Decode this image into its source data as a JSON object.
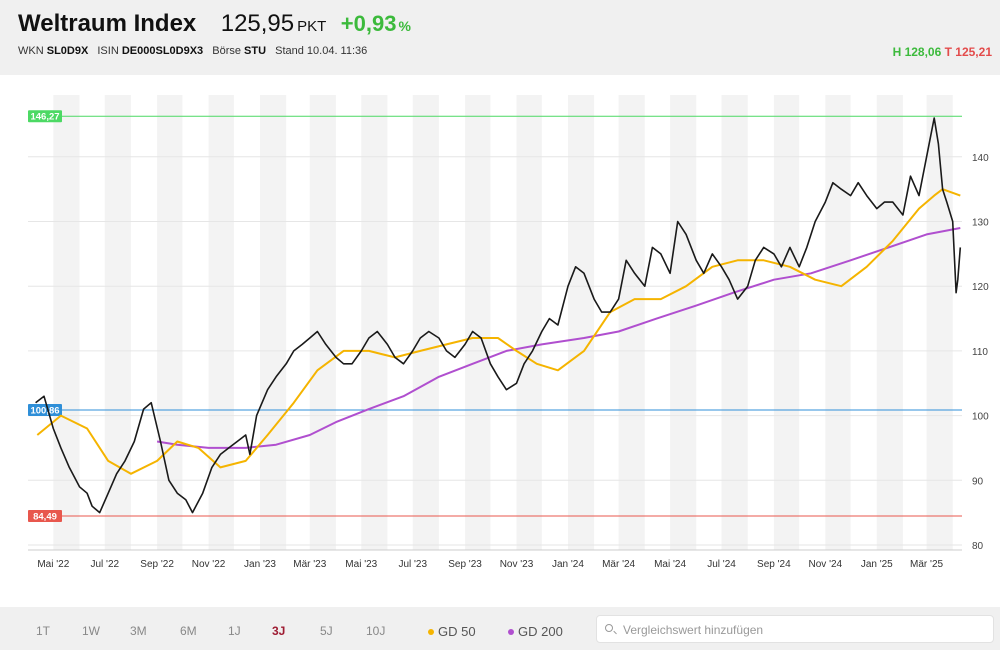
{
  "header": {
    "name": "Weltraum Index",
    "price": "125,95",
    "unit": "PKT",
    "change": "+0,93",
    "change_unit": "%",
    "wkn_label": "WKN",
    "wkn": "SL0D9X",
    "isin_label": "ISIN",
    "isin": "DE000SL0D9X3",
    "exchange_label": "Börse",
    "exchange": "STU",
    "stand_label": "Stand",
    "stand": "10.04. 11:36",
    "high": "H 128,06",
    "low": "T 125,21"
  },
  "colors": {
    "price_line": "#1a1a1a",
    "gd50": "#f5b400",
    "gd200": "#b04fcf",
    "max_line": "#4cd964",
    "ref_line": "#2f8fd8",
    "min_line": "#e8574d",
    "band": "#f3f3f3",
    "up": "#3cba3c",
    "down": "#e34b4b"
  },
  "chart_data": {
    "type": "line",
    "y_ticks": [
      80,
      90,
      100,
      110,
      120,
      130,
      140
    ],
    "ylim": [
      78,
      148
    ],
    "x_months": [
      "Mai '22",
      "Jul '22",
      "Sep '22",
      "Nov '22",
      "Jan '23",
      "Mär '23",
      "Mai '23",
      "Jul '23",
      "Sep '23",
      "Nov '23",
      "Jan '24",
      "Mär '24",
      "Mai '24",
      "Jul '24",
      "Sep '24",
      "Nov '24",
      "Jan '25",
      "Mär '25"
    ],
    "levels": [
      {
        "label": "146,27",
        "value": 146.27,
        "kind": "max"
      },
      {
        "label": "100,86",
        "value": 100.86,
        "kind": "ref"
      },
      {
        "label": "84,49",
        "value": 84.49,
        "kind": "min"
      }
    ],
    "series": [
      {
        "name": "",
        "key": "price",
        "x": [
          "2022-04-10",
          "2022-04-20",
          "2022-05-01",
          "2022-05-10",
          "2022-05-20",
          "2022-06-01",
          "2022-06-10",
          "2022-06-16",
          "2022-06-25",
          "2022-07-05",
          "2022-07-15",
          "2022-07-25",
          "2022-08-05",
          "2022-08-16",
          "2022-08-25",
          "2022-09-05",
          "2022-09-15",
          "2022-09-25",
          "2022-10-05",
          "2022-10-13",
          "2022-10-25",
          "2022-11-05",
          "2022-11-15",
          "2022-11-25",
          "2022-12-05",
          "2022-12-15",
          "2022-12-20",
          "2022-12-28",
          "2023-01-10",
          "2023-01-20",
          "2023-02-01",
          "2023-02-10",
          "2023-02-20",
          "2023-03-01",
          "2023-03-10",
          "2023-03-20",
          "2023-04-01",
          "2023-04-10",
          "2023-04-20",
          "2023-05-01",
          "2023-05-10",
          "2023-05-20",
          "2023-06-01",
          "2023-06-10",
          "2023-06-20",
          "2023-07-01",
          "2023-07-10",
          "2023-07-20",
          "2023-08-01",
          "2023-08-10",
          "2023-08-20",
          "2023-09-01",
          "2023-09-10",
          "2023-09-20",
          "2023-10-01",
          "2023-10-10",
          "2023-10-20",
          "2023-11-01",
          "2023-11-10",
          "2023-11-20",
          "2023-12-01",
          "2023-12-10",
          "2023-12-20",
          "2024-01-01",
          "2024-01-10",
          "2024-01-20",
          "2024-02-01",
          "2024-02-10",
          "2024-02-20",
          "2024-03-01",
          "2024-03-10",
          "2024-03-20",
          "2024-04-01",
          "2024-04-10",
          "2024-04-20",
          "2024-05-01",
          "2024-05-10",
          "2024-05-20",
          "2024-06-01",
          "2024-06-10",
          "2024-06-20",
          "2024-07-01",
          "2024-07-10",
          "2024-07-20",
          "2024-08-01",
          "2024-08-10",
          "2024-08-20",
          "2024-09-01",
          "2024-09-10",
          "2024-09-20",
          "2024-10-01",
          "2024-10-10",
          "2024-10-20",
          "2024-11-01",
          "2024-11-10",
          "2024-11-20",
          "2024-12-01",
          "2024-12-10",
          "2024-12-20",
          "2025-01-01",
          "2025-01-10",
          "2025-01-20",
          "2025-02-01",
          "2025-02-10",
          "2025-02-20",
          "2025-03-01",
          "2025-03-10",
          "2025-03-15",
          "2025-03-20",
          "2025-03-25",
          "2025-04-01",
          "2025-04-05",
          "2025-04-07",
          "2025-04-10"
        ],
        "y": [
          102,
          103,
          98,
          95,
          92,
          89,
          88,
          86,
          85,
          88,
          91,
          93,
          96,
          101,
          102,
          96,
          90,
          88,
          87,
          85,
          88,
          92,
          94,
          95,
          96,
          97,
          94,
          100,
          104,
          106,
          108,
          110,
          111,
          112,
          113,
          111,
          109,
          108,
          108,
          110,
          112,
          113,
          111,
          109,
          108,
          110,
          112,
          113,
          112,
          110,
          109,
          111,
          113,
          112,
          108,
          106,
          104,
          105,
          108,
          110,
          113,
          115,
          114,
          120,
          123,
          122,
          118,
          116,
          116,
          118,
          124,
          122,
          120,
          126,
          125,
          122,
          130,
          128,
          124,
          122,
          125,
          123,
          121,
          118,
          120,
          124,
          126,
          125,
          123,
          126,
          123,
          126,
          130,
          133,
          136,
          135,
          134,
          136,
          134,
          132,
          133,
          133,
          131,
          137,
          134,
          140,
          146,
          142,
          135,
          133,
          130,
          119,
          121,
          126
        ]
      },
      {
        "name": "GD 50",
        "key": "gd50",
        "x": [
          "2022-04-12",
          "2022-05-10",
          "2022-06-10",
          "2022-07-05",
          "2022-08-01",
          "2022-09-01",
          "2022-09-25",
          "2022-10-20",
          "2022-11-15",
          "2022-12-15",
          "2023-01-10",
          "2023-02-10",
          "2023-03-10",
          "2023-04-10",
          "2023-05-10",
          "2023-06-10",
          "2023-07-10",
          "2023-08-10",
          "2023-09-10",
          "2023-10-10",
          "2023-11-01",
          "2023-11-25",
          "2023-12-20",
          "2024-01-20",
          "2024-02-20",
          "2024-03-20",
          "2024-04-20",
          "2024-05-20",
          "2024-06-20",
          "2024-07-20",
          "2024-08-20",
          "2024-09-20",
          "2024-10-20",
          "2024-11-20",
          "2024-12-20",
          "2025-01-20",
          "2025-02-20",
          "2025-03-10",
          "2025-03-20",
          "2025-04-10"
        ],
        "y": [
          97,
          100,
          98,
          93,
          91,
          93,
          96,
          95,
          92,
          93,
          97,
          102,
          107,
          110,
          110,
          109,
          110,
          111,
          112,
          112,
          110,
          108,
          107,
          110,
          116,
          118,
          118,
          120,
          123,
          124,
          124,
          123,
          121,
          120,
          123,
          127,
          132,
          134,
          135,
          134
        ]
      },
      {
        "name": "GD 200",
        "key": "gd200",
        "x": [
          "2022-09-01",
          "2022-09-25",
          "2022-11-01",
          "2022-12-15",
          "2023-01-20",
          "2023-03-01",
          "2023-04-01",
          "2023-05-10",
          "2023-06-20",
          "2023-08-01",
          "2023-09-10",
          "2023-10-20",
          "2023-12-01",
          "2024-01-20",
          "2024-03-01",
          "2024-04-15",
          "2024-06-01",
          "2024-07-15",
          "2024-09-01",
          "2024-10-15",
          "2024-12-01",
          "2025-01-15",
          "2025-03-01",
          "2025-04-10"
        ],
        "y": [
          96,
          95.5,
          95,
          95,
          95.5,
          97,
          99,
          101,
          103,
          106,
          108,
          110,
          111,
          112,
          113,
          115,
          117,
          119,
          121,
          122,
          124,
          126,
          128,
          129
        ]
      }
    ]
  },
  "footer": {
    "ranges": [
      {
        "label": "1T",
        "active": false
      },
      {
        "label": "1W",
        "active": false
      },
      {
        "label": "3M",
        "active": false
      },
      {
        "label": "6M",
        "active": false
      },
      {
        "label": "1J",
        "active": false
      },
      {
        "label": "3J",
        "active": true
      },
      {
        "label": "5J",
        "active": false
      },
      {
        "label": "10J",
        "active": false
      }
    ],
    "legend_gd50": "GD 50",
    "legend_gd200": "GD 200",
    "search_placeholder": "Vergleichswert hinzufügen"
  }
}
